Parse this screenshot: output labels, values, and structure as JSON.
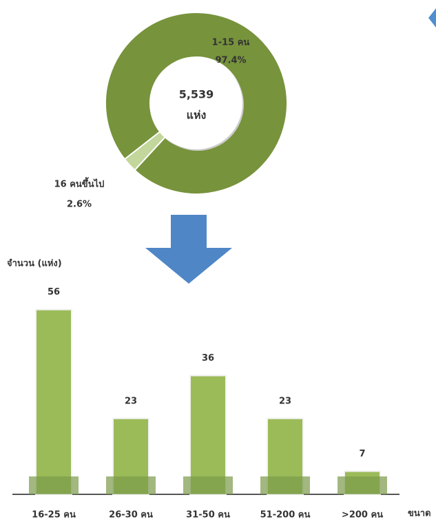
{
  "chart_data": [
    {
      "type": "pie",
      "center_text": [
        "5,539",
        "แห่ง"
      ],
      "categories": [
        "1-15 คน",
        "16 คนขึ้นไป"
      ],
      "values": [
        97.4,
        2.6
      ],
      "value_labels": [
        "97.4%",
        "2.6%"
      ],
      "colors": [
        "#77933c",
        "#c3d69b"
      ]
    },
    {
      "type": "bar",
      "y_label": "จำนวน (แห่ง)",
      "x_label": "ขนาด",
      "categories": [
        "16-25 คน",
        "26-30 คน",
        "31-50 คน",
        "51-200 คน",
        ">200 คน"
      ],
      "values": [
        56,
        23,
        36,
        23,
        7
      ],
      "color": "#9bbb59",
      "ylim": [
        0,
        60
      ]
    }
  ]
}
